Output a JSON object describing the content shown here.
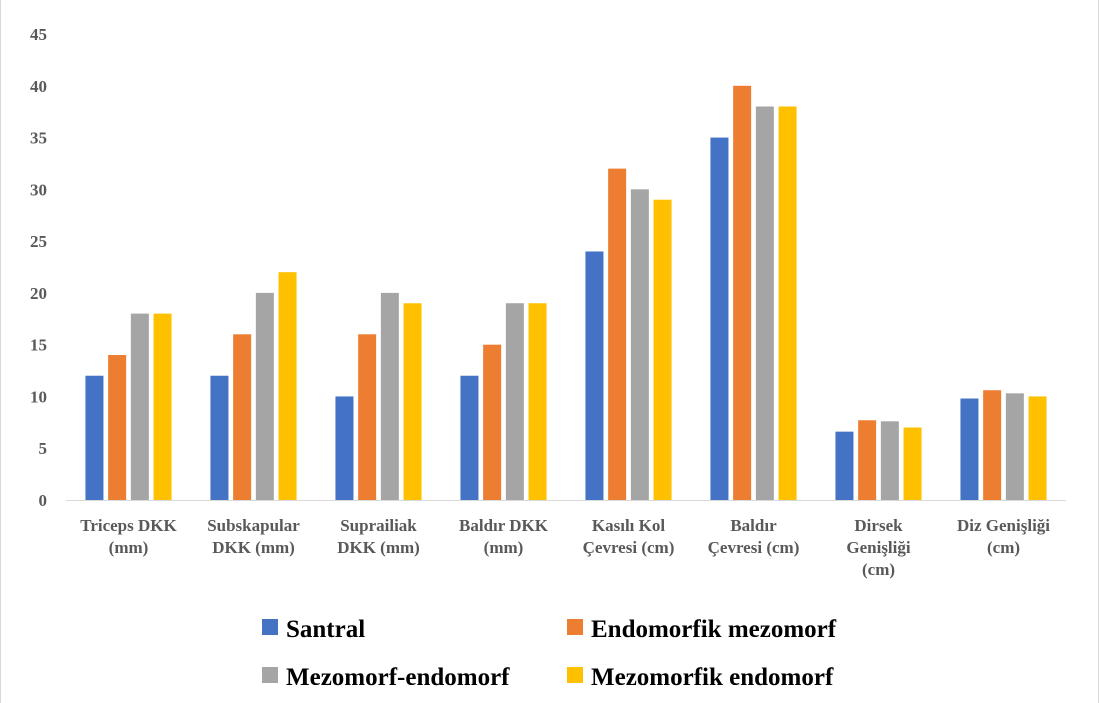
{
  "chart_data": {
    "type": "bar",
    "title": "",
    "xlabel": "",
    "ylabel": "",
    "ylim": [
      0,
      45
    ],
    "y_ticks": [
      0,
      5,
      10,
      15,
      20,
      25,
      30,
      35,
      40,
      45
    ],
    "grid": false,
    "legend_position": "bottom",
    "categories": [
      [
        "Triceps DKK",
        "(mm)"
      ],
      [
        "Subskapular",
        "DKK (mm)"
      ],
      [
        "Suprailiak",
        "DKK (mm)"
      ],
      [
        "Baldır DKK",
        "(mm)"
      ],
      [
        "Kasılı Kol",
        "Çevresi (cm)"
      ],
      [
        "Baldır",
        "Çevresi (cm)"
      ],
      [
        "Dirsek",
        "Genişliği",
        "(cm)"
      ],
      [
        "Diz Genişliği",
        "(cm)"
      ]
    ],
    "series": [
      {
        "name": "Santral",
        "color": "#4472c4",
        "values": [
          12,
          12,
          10,
          12,
          24,
          35,
          6.6,
          9.8
        ]
      },
      {
        "name": "Endomorfik mezomorf",
        "color": "#ed7d31",
        "values": [
          14,
          16,
          16,
          15,
          32,
          40,
          7.7,
          10.6
        ]
      },
      {
        "name": "Mezomorf-endomorf",
        "color": "#a5a5a5",
        "values": [
          18,
          20,
          20,
          19,
          30,
          38,
          7.6,
          10.3
        ]
      },
      {
        "name": "Mezomorfik endomorf",
        "color": "#ffc000",
        "values": [
          18,
          22,
          19,
          19,
          29,
          38,
          7.0,
          10.0
        ]
      }
    ]
  }
}
